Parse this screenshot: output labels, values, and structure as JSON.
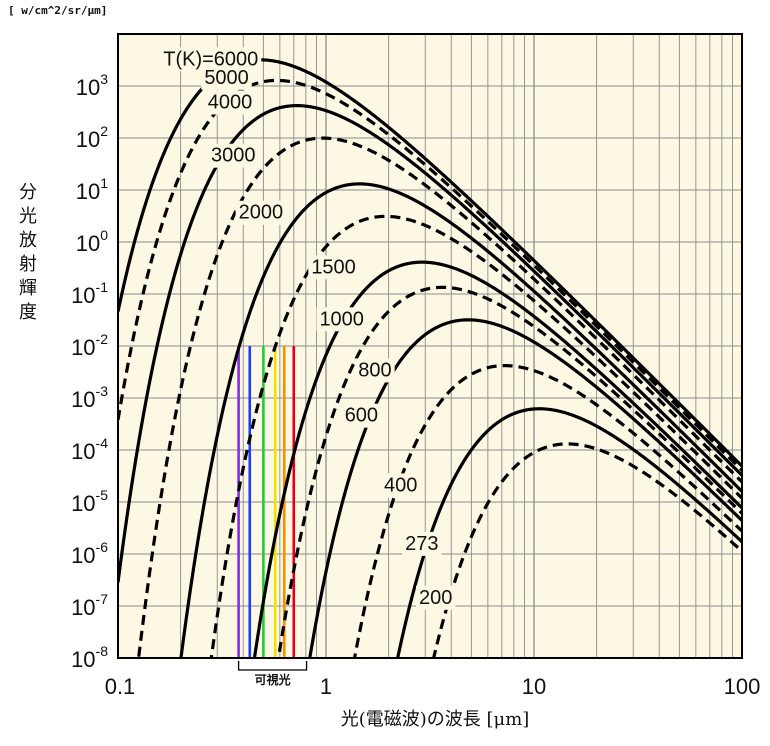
{
  "chart_data": {
    "type": "line",
    "units_label": "[ w/cm^2/sr/μm]",
    "xlabel": "光(電磁波)の波長 [μm]",
    "ylabel": "分光放射輝度",
    "xscale": "log",
    "yscale": "log",
    "xlim": [
      0.1,
      100
    ],
    "ylim": [
      1e-08,
      10000
    ],
    "grid": true,
    "x_ticks": [
      {
        "value": 0.1,
        "label": "0.1"
      },
      {
        "value": 1,
        "label": "1"
      },
      {
        "value": 10,
        "label": "10"
      },
      {
        "value": 100,
        "label": "100"
      }
    ],
    "y_ticks": [
      {
        "exp": 3,
        "base": "10",
        "sup": "3"
      },
      {
        "exp": 2,
        "base": "10",
        "sup": "2"
      },
      {
        "exp": 1,
        "base": "10",
        "sup": "1"
      },
      {
        "exp": 0,
        "base": "10",
        "sup": "0"
      },
      {
        "exp": -1,
        "base": "10",
        "sup": "-1"
      },
      {
        "exp": -2,
        "base": "10",
        "sup": "-2"
      },
      {
        "exp": -3,
        "base": "10",
        "sup": "-3"
      },
      {
        "exp": -4,
        "base": "10",
        "sup": "-4"
      },
      {
        "exp": -5,
        "base": "10",
        "sup": "-5"
      },
      {
        "exp": -6,
        "base": "10",
        "sup": "-6"
      },
      {
        "exp": -7,
        "base": "10",
        "sup": "-7"
      },
      {
        "exp": -8,
        "base": "10",
        "sup": "-8"
      }
    ],
    "series": [
      {
        "name": "T(K)=6000",
        "T": 6000,
        "style": "solid",
        "label_at": [
          0.165,
          2500
        ]
      },
      {
        "name": "5000",
        "T": 5000,
        "style": "dashed",
        "label_at": [
          0.26,
          1100
        ]
      },
      {
        "name": "4000",
        "T": 4000,
        "style": "solid",
        "label_at": [
          0.27,
          370
        ]
      },
      {
        "name": "3000",
        "T": 3000,
        "style": "dashed",
        "label_at": [
          0.28,
          35
        ]
      },
      {
        "name": "2000",
        "T": 2000,
        "style": "solid",
        "label_at": [
          0.38,
          2.8
        ]
      },
      {
        "name": "1500",
        "T": 1500,
        "style": "dashed",
        "label_at": [
          0.85,
          0.25
        ]
      },
      {
        "name": "1000",
        "T": 1000,
        "style": "solid",
        "label_at": [
          0.93,
          0.025
        ]
      },
      {
        "name": "800",
        "T": 800,
        "style": "dashed",
        "label_at": [
          1.43,
          0.0026
        ]
      },
      {
        "name": "600",
        "T": 600,
        "style": "solid",
        "label_at": [
          1.23,
          0.00035
        ]
      },
      {
        "name": "400",
        "T": 400,
        "style": "dashed",
        "label_at": [
          1.9,
          1.6e-05
        ]
      },
      {
        "name": "273",
        "T": 273,
        "style": "solid",
        "label_at": [
          2.4,
          1.2e-06
        ]
      },
      {
        "name": "200",
        "T": 200,
        "style": "dashed",
        "label_at": [
          2.8,
          1.1e-07
        ]
      }
    ],
    "visible_band": {
      "label": "可視光",
      "range": [
        0.38,
        0.78
      ],
      "top": 0.01,
      "lines": [
        {
          "x": 0.38,
          "color": "#8a2be2"
        },
        {
          "x": 0.43,
          "color": "#1e3cff"
        },
        {
          "x": 0.5,
          "color": "#22cc33"
        },
        {
          "x": 0.57,
          "color": "#f2e200"
        },
        {
          "x": 0.63,
          "color": "#ff8c00"
        },
        {
          "x": 0.7,
          "color": "#e0001b"
        }
      ]
    },
    "colors": {
      "plot_background": "#fdf8e4",
      "grid": "#8c8c8c",
      "curve": "#000000"
    }
  }
}
